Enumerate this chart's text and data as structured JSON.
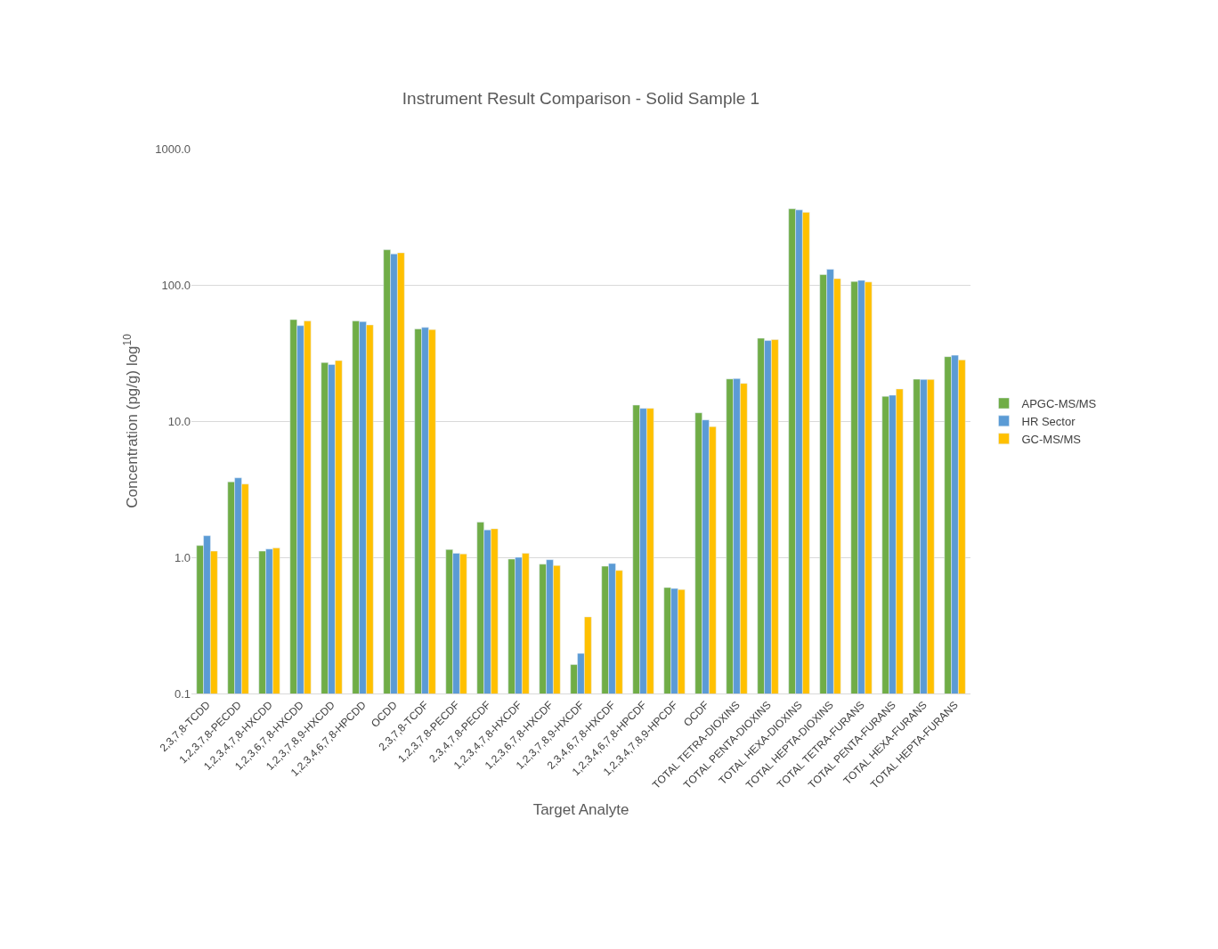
{
  "chart_data": {
    "type": "bar",
    "title": "Instrument Result Comparison - Solid Sample 1",
    "xlabel": "Target Analyte",
    "ylabel": "Concentration (pg/g) log$^{10}$",
    "categories": [
      "2,3,7,8-TCDD",
      "1,2,3,7,8-PECDD",
      "1,2,3,4,7,8-HXCDD",
      "1,2,3,6,7,8-HXCDD",
      "1,2,3,7,8,9-HXCDD",
      "1,2,3,4,6,7,8-HPCDD",
      "OCDD",
      "2,3,7,8-TCDF",
      "1,2,3,7,8-PECDF",
      "2,3,4,7,8-PECDF",
      "1,2,3,4,7,8-HXCDF",
      "1,2,3,6,7,8-HXCDF",
      "1,2,3,7,8,9-HXCDF",
      "2,3,4,6,7,8-HXCDF",
      "1,2,3,4,6,7,8-HPCDF",
      "1,2,3,4,7,8,9-HPCDF",
      "OCDF",
      "TOTAL TETRA-DIOXINS",
      "TOTAL PENTA-DIOXINS",
      "TOTAL HEXA-DIOXINS",
      "TOTAL HEPTA-DIOXINS",
      "TOTAL TETRA-FURANS",
      "TOTAL PENTA-FURANS",
      "TOTAL HEXA-FURANS",
      "TOTAL HEPTA-FURANS"
    ],
    "series": [
      {
        "name": "APGC-MS/MS",
        "color": "#70ad47",
        "values": [
          1.22,
          3.58,
          1.11,
          55.6,
          26.9,
          54.3,
          181,
          47.5,
          1.14,
          1.81,
          0.97,
          0.89,
          0.163,
          0.86,
          13.1,
          0.6,
          11.5,
          20.4,
          40.6,
          362,
          119,
          106,
          15.2,
          20.3,
          29.7
        ]
      },
      {
        "name": "HR Sector",
        "color": "#5b9bd5",
        "values": [
          1.44,
          3.83,
          1.15,
          50.2,
          26.0,
          53.7,
          169,
          48.7,
          1.07,
          1.59,
          1.0,
          0.96,
          0.197,
          0.9,
          12.4,
          0.59,
          10.2,
          20.5,
          39.0,
          355,
          130,
          108,
          15.5,
          20.2,
          30.4
        ]
      },
      {
        "name": "GC-MS/MS",
        "color": "#ffc000",
        "values": [
          1.11,
          3.45,
          1.17,
          54.3,
          27.8,
          50.8,
          172,
          47.0,
          1.06,
          1.62,
          1.07,
          0.87,
          0.365,
          0.8,
          12.4,
          0.58,
          9.1,
          18.9,
          39.6,
          341,
          111,
          105,
          17.2,
          20.2,
          28.1
        ]
      }
    ],
    "log": "y",
    "ylim": [
      0.1,
      1000
    ],
    "yticks": [
      {
        "value": 0.1,
        "label": "0.1"
      },
      {
        "value": 1,
        "label": "1.0"
      },
      {
        "value": 10,
        "label": "10.0"
      },
      {
        "value": 100,
        "label": "100.0"
      },
      {
        "value": 1000,
        "label": "1000.0"
      }
    ],
    "grid": "y",
    "legend": "right"
  }
}
